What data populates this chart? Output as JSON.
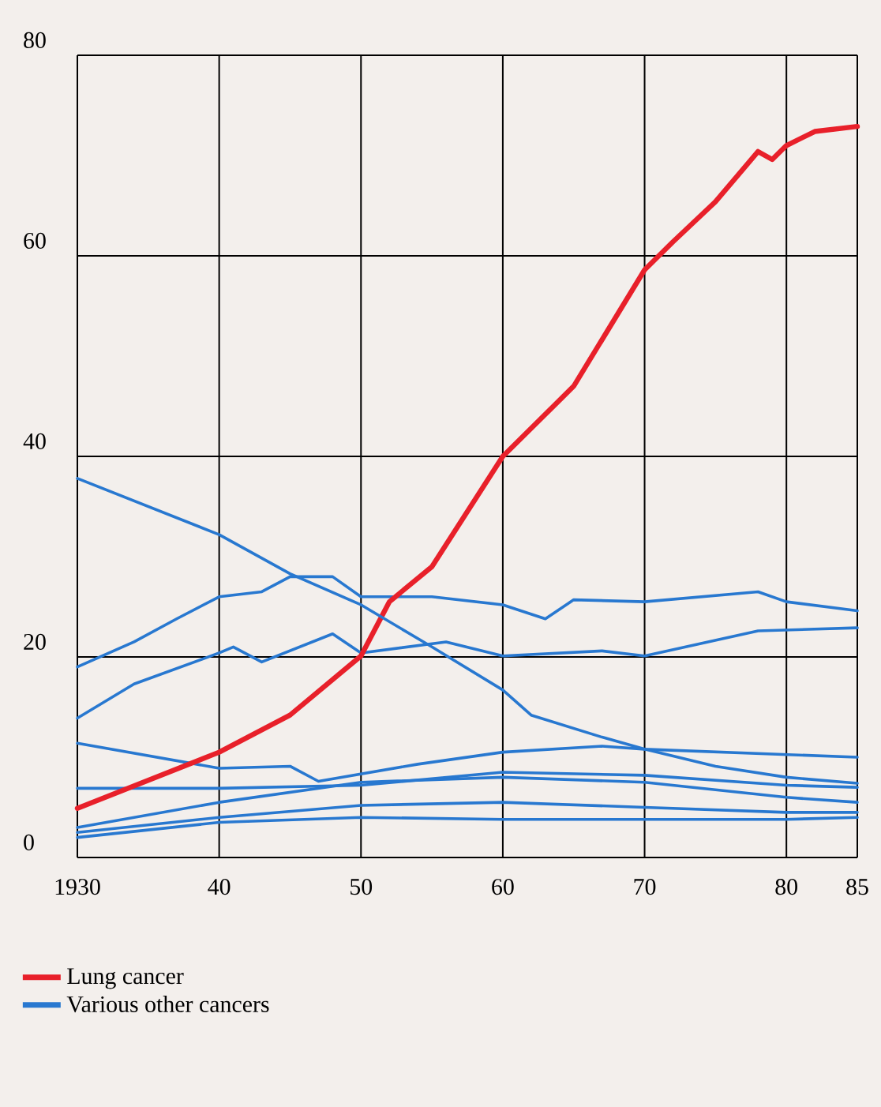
{
  "chart_data": {
    "type": "line",
    "xlim": [
      1930,
      1985
    ],
    "ylim": [
      0,
      80
    ],
    "xticks": [
      {
        "value": 1930,
        "label": "1930"
      },
      {
        "value": 1940,
        "label": "40"
      },
      {
        "value": 1950,
        "label": "50"
      },
      {
        "value": 1960,
        "label": "60"
      },
      {
        "value": 1970,
        "label": "70"
      },
      {
        "value": 1980,
        "label": "80"
      },
      {
        "value": 1985,
        "label": "85"
      }
    ],
    "yticks": [
      0,
      20,
      40,
      60,
      80
    ],
    "grid": true,
    "legend": "bottom",
    "series": [
      {
        "name": "Lung cancer",
        "color": "#e8202a",
        "x": [
          1930,
          1940,
          1945,
          1950,
          1952,
          1955,
          1960,
          1965,
          1970,
          1972,
          1975,
          1978,
          1979,
          1980,
          1982,
          1985
        ],
        "values": [
          4.9,
          10.5,
          14.2,
          20.1,
          25.5,
          29,
          40,
          47,
          58.6,
          61.4,
          65.4,
          70.4,
          69.6,
          71,
          72.4,
          72.9
        ]
      },
      {
        "name": "Various other cancers",
        "color": "#2878d0",
        "x": [
          1930,
          1940,
          1945,
          1950,
          1955,
          1960,
          1962,
          1967,
          1970,
          1975,
          1980,
          1985
        ],
        "values": [
          37.8,
          32.2,
          28.3,
          25.2,
          21,
          16.7,
          14.2,
          12,
          10.8,
          9.1,
          8,
          7.4
        ]
      },
      {
        "color": "#2878d0",
        "x": [
          1930,
          1934,
          1937,
          1940,
          1943,
          1945,
          1948,
          1950,
          1955,
          1960,
          1963,
          1965,
          1970,
          1978,
          1980,
          1985
        ],
        "values": [
          19,
          21.5,
          23.8,
          26,
          26.5,
          28,
          28,
          26,
          26,
          25.2,
          23.8,
          25.7,
          25.5,
          26.5,
          25.5,
          24.6
        ]
      },
      {
        "color": "#2878d0",
        "x": [
          1930,
          1934,
          1940,
          1941,
          1943,
          1948,
          1950,
          1956,
          1960,
          1967,
          1970,
          1978,
          1985
        ],
        "values": [
          13.9,
          17.3,
          20.4,
          21,
          19.5,
          22.3,
          20.4,
          21.5,
          20.1,
          20.6,
          20.1,
          22.6,
          22.9
        ]
      },
      {
        "color": "#2878d0",
        "x": [
          1930,
          1940,
          1945,
          1947,
          1954,
          1960,
          1967,
          1970,
          1985
        ],
        "values": [
          11.4,
          8.9,
          9.1,
          7.6,
          9.3,
          10.5,
          11.1,
          10.8,
          10
        ]
      },
      {
        "color": "#2878d0",
        "x": [
          1930,
          1940,
          1950,
          1960,
          1970,
          1980,
          1985
        ],
        "values": [
          6.9,
          6.9,
          7.2,
          8.5,
          8.2,
          7.2,
          7
        ]
      },
      {
        "color": "#2878d0",
        "x": [
          1930,
          1940,
          1950,
          1960,
          1970,
          1980,
          1985
        ],
        "values": [
          3,
          5.5,
          7.5,
          8,
          7.5,
          6,
          5.5
        ]
      },
      {
        "color": "#2878d0",
        "x": [
          1930,
          1940,
          1950,
          1960,
          1970,
          1980,
          1985
        ],
        "values": [
          2.5,
          4,
          5.2,
          5.5,
          5,
          4.5,
          4.5
        ]
      },
      {
        "color": "#2878d0",
        "x": [
          1930,
          1940,
          1950,
          1960,
          1970,
          1980,
          1985
        ],
        "values": [
          2,
          3.5,
          4,
          3.8,
          3.8,
          3.8,
          4
        ]
      }
    ]
  }
}
